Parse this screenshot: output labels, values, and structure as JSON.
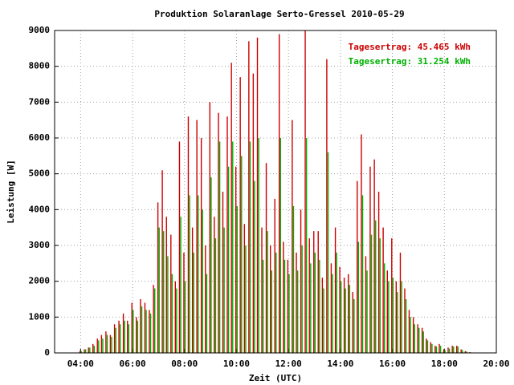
{
  "chart_data": {
    "type": "impulses",
    "title": "Produktion Solaranlage Serto-Gressel 2010-05-29",
    "xlabel": "Zeit (UTC)",
    "ylabel": "Leistung [W]",
    "annotations": [
      {
        "text": "Tagesertrag: 45.465 kWh",
        "color": "#cc0000"
      },
      {
        "text": "Tagesertrag: 31.254 kWh",
        "color": "#00b000"
      }
    ],
    "grid": true,
    "xlim": [
      3,
      20
    ],
    "xticks": [
      {
        "value": 4,
        "label": "04:00"
      },
      {
        "value": 6,
        "label": "06:00"
      },
      {
        "value": 8,
        "label": "08:00"
      },
      {
        "value": 10,
        "label": "10:00"
      },
      {
        "value": 12,
        "label": "12:00"
      },
      {
        "value": 14,
        "label": "14:00"
      },
      {
        "value": 16,
        "label": "16:00"
      },
      {
        "value": 18,
        "label": "18:00"
      },
      {
        "value": 20,
        "label": "20:00"
      }
    ],
    "ylim": [
      0,
      9000
    ],
    "yticks": [
      0,
      1000,
      2000,
      3000,
      4000,
      5000,
      6000,
      7000,
      8000,
      9000
    ],
    "x": [
      4,
      4.17,
      4.33,
      4.5,
      4.67,
      4.83,
      5,
      5.17,
      5.33,
      5.5,
      5.67,
      5.83,
      6,
      6.17,
      6.33,
      6.5,
      6.67,
      6.83,
      7,
      7.17,
      7.33,
      7.5,
      7.67,
      7.83,
      8,
      8.17,
      8.33,
      8.5,
      8.67,
      8.83,
      9,
      9.17,
      9.33,
      9.5,
      9.67,
      9.83,
      10,
      10.17,
      10.33,
      10.5,
      10.67,
      10.83,
      11,
      11.17,
      11.33,
      11.5,
      11.67,
      11.83,
      12,
      12.17,
      12.33,
      12.5,
      12.67,
      12.83,
      13,
      13.17,
      13.33,
      13.5,
      13.67,
      13.83,
      14,
      14.17,
      14.33,
      14.5,
      14.67,
      14.83,
      15,
      15.17,
      15.33,
      15.5,
      15.67,
      15.83,
      16,
      16.17,
      16.33,
      16.5,
      16.67,
      16.83,
      17,
      17.17,
      17.33,
      17.5,
      17.67,
      17.83,
      18,
      18.17,
      18.33,
      18.5,
      18.67,
      18.83,
      19
    ],
    "series": [
      {
        "color": "#cc0000",
        "values": [
          50,
          100,
          150,
          250,
          400,
          500,
          600,
          500,
          800,
          900,
          1100,
          900,
          1400,
          1000,
          1500,
          1400,
          1200,
          1900,
          4200,
          5100,
          3800,
          3300,
          2000,
          5900,
          2800,
          6600,
          3500,
          6500,
          6000,
          3000,
          7000,
          3800,
          6700,
          4500,
          6600,
          8100,
          5200,
          7700,
          3600,
          8700,
          7800,
          8800,
          3500,
          5300,
          3000,
          4300,
          8900,
          3100,
          2600,
          6500,
          2800,
          4000,
          9000,
          3200,
          3400,
          3400,
          2100,
          8200,
          2500,
          3500,
          2400,
          2100,
          2200,
          1700,
          4800,
          6100,
          2700,
          5200,
          5400,
          4500,
          3500,
          2300,
          3200,
          2000,
          2800,
          1800,
          1200,
          1000,
          800,
          700,
          400,
          300,
          200,
          250,
          100,
          150,
          200,
          200,
          100,
          50,
          20
        ]
      },
      {
        "color": "#00b000",
        "values": [
          50,
          100,
          150,
          200,
          350,
          400,
          500,
          450,
          700,
          800,
          900,
          800,
          1200,
          900,
          1300,
          1200,
          1100,
          1800,
          3500,
          3400,
          2700,
          2200,
          1800,
          3800,
          2000,
          4400,
          2800,
          4400,
          4000,
          2200,
          4900,
          3200,
          5900,
          3500,
          5200,
          5900,
          4100,
          5500,
          3000,
          5900,
          4800,
          6000,
          2600,
          3400,
          2300,
          2800,
          6000,
          2600,
          2200,
          4100,
          2300,
          3000,
          6000,
          2500,
          2800,
          2600,
          1800,
          5600,
          2200,
          2800,
          2000,
          1800,
          1900,
          1500,
          3100,
          4400,
          2300,
          3300,
          3700,
          3200,
          2500,
          2000,
          2100,
          1700,
          2000,
          1500,
          1000,
          800,
          700,
          600,
          350,
          250,
          180,
          200,
          80,
          120,
          180,
          180,
          80,
          40,
          15
        ]
      }
    ]
  }
}
